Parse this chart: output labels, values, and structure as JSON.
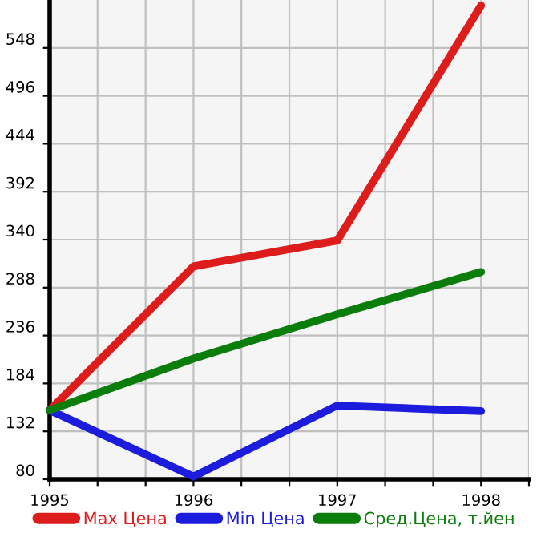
{
  "chart_data": {
    "type": "line",
    "x": [
      1995,
      1996,
      1997,
      1998
    ],
    "series": [
      {
        "name": "Max Цена",
        "color": "#dd1c1c",
        "values": [
          155,
          311,
          339,
          594
        ]
      },
      {
        "name": "Min Цена",
        "color": "#1c1cdd",
        "values": [
          155,
          83,
          160,
          154
        ]
      },
      {
        "name": "Сред.Цена, т.йен",
        "color": "#0a7d0a",
        "values": [
          155,
          211,
          259,
          305
        ]
      }
    ],
    "xlim": [
      1995,
      1998.333
    ],
    "xticks": [
      1995,
      {
        "value": 1995.333,
        "label": null
      },
      {
        "value": 1995.667,
        "label": null
      },
      1996,
      {
        "value": 1996.333,
        "label": null
      },
      {
        "value": 1996.667,
        "label": null
      },
      1997,
      {
        "value": 1997.333,
        "label": null
      },
      {
        "value": 1997.667,
        "label": null
      },
      1998,
      {
        "value": 1998.333,
        "label": null
      }
    ],
    "ylim": [
      80,
      600
    ],
    "yticks": [
      80,
      132,
      184,
      236,
      288,
      340,
      392,
      444,
      496,
      548
    ],
    "grid": true,
    "legend": "bottom",
    "marker": "none",
    "line_style": "solid"
  }
}
